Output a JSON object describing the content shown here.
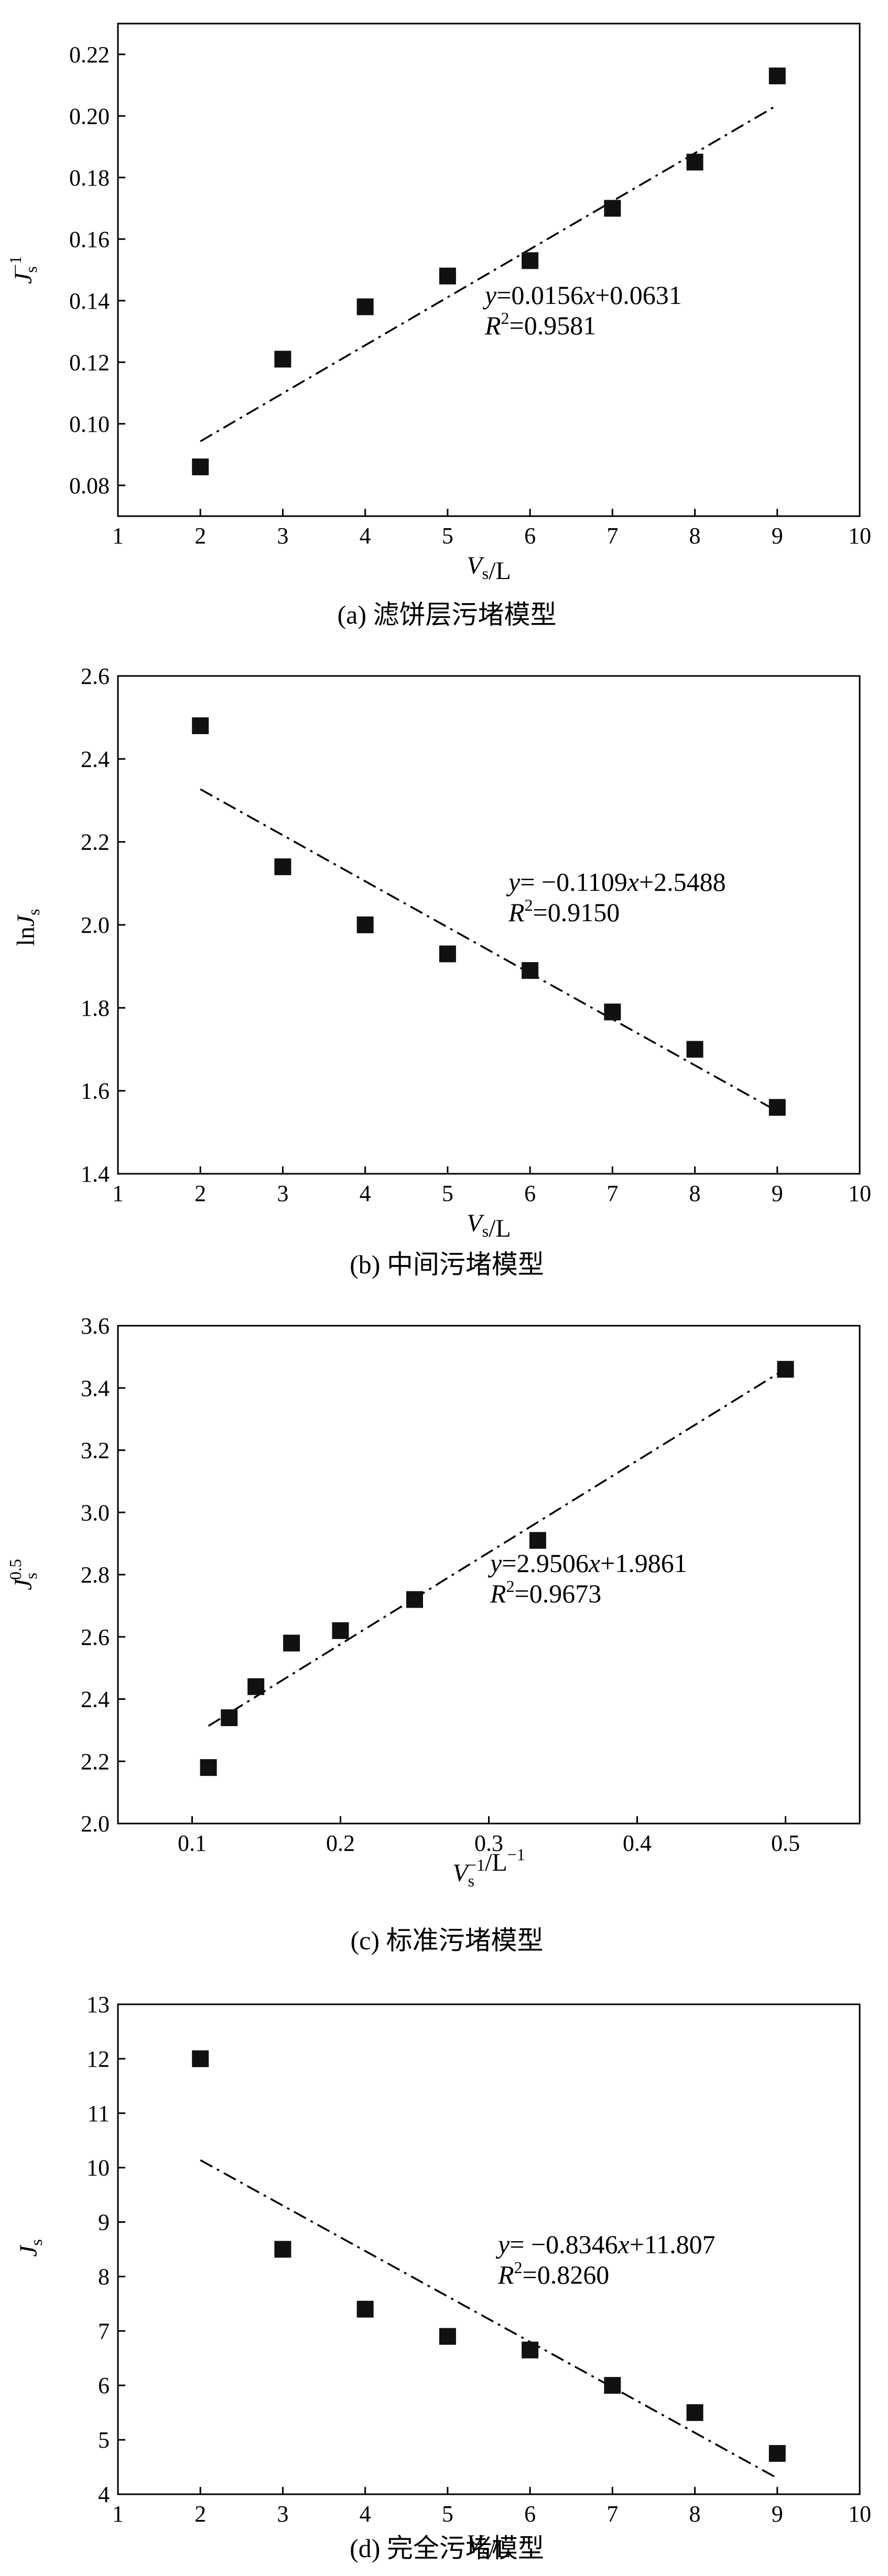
{
  "chart_data": [
    {
      "type": "scatter",
      "caption": "(a) 滤饼层污堵模型",
      "xlabel": "V_s/L",
      "ylabel": "J_s^-1",
      "xlim": [
        1,
        10
      ],
      "ylim": [
        0.07,
        0.23
      ],
      "xticks": [
        1,
        2,
        3,
        4,
        5,
        6,
        7,
        8,
        9,
        10
      ],
      "yticks": [
        0.08,
        0.1,
        0.12,
        0.14,
        0.16,
        0.18,
        0.2,
        0.22
      ],
      "ytick_decimals": 2,
      "x": [
        2,
        3,
        4,
        5,
        6,
        7,
        8,
        9
      ],
      "y": [
        0.086,
        0.121,
        0.138,
        0.148,
        0.153,
        0.17,
        0.185,
        0.213
      ],
      "fit": {
        "slope": 0.0156,
        "intercept": 0.0631,
        "x_range": [
          2,
          9
        ]
      },
      "equation": "y=0.0156x+0.0631",
      "r2": "R²=0.9581",
      "grid": false
    },
    {
      "type": "scatter",
      "caption": "(b) 中间污堵模型",
      "xlabel": "V_s/L",
      "ylabel": "lnJ_s",
      "xlim": [
        1,
        10
      ],
      "ylim": [
        1.4,
        2.6
      ],
      "xticks": [
        1,
        2,
        3,
        4,
        5,
        6,
        7,
        8,
        9,
        10
      ],
      "yticks": [
        1.4,
        1.6,
        1.8,
        2.0,
        2.2,
        2.4,
        2.6
      ],
      "ytick_decimals": 1,
      "x": [
        2,
        3,
        4,
        5,
        6,
        7,
        8,
        9
      ],
      "y": [
        2.48,
        2.14,
        2.0,
        1.93,
        1.89,
        1.79,
        1.7,
        1.56
      ],
      "fit": {
        "slope": -0.1109,
        "intercept": 2.5488,
        "x_range": [
          2,
          9
        ]
      },
      "equation": "y= −0.1109x+2.5488",
      "r2": "R²=0.9150",
      "grid": false
    },
    {
      "type": "scatter",
      "caption": "(c) 标准污堵模型",
      "xlabel": "V_s^-1/L^-1",
      "ylabel": "J_s^0.5",
      "xlim": [
        0.05,
        0.55
      ],
      "ylim": [
        2.0,
        3.6
      ],
      "xticks": [
        0.1,
        0.2,
        0.3,
        0.4,
        0.5
      ],
      "yticks": [
        2.0,
        2.2,
        2.4,
        2.6,
        2.8,
        3.0,
        3.2,
        3.4,
        3.6
      ],
      "ytick_decimals": 1,
      "x": [
        0.111,
        0.125,
        0.143,
        0.167,
        0.2,
        0.25,
        0.333,
        0.5
      ],
      "y": [
        2.18,
        2.34,
        2.44,
        2.58,
        2.62,
        2.72,
        2.91,
        3.46
      ],
      "fit": {
        "slope": 2.9506,
        "intercept": 1.9861,
        "x_range": [
          0.111,
          0.5
        ]
      },
      "equation": "y=2.9506x+1.9861",
      "r2": "R²=0.9673",
      "grid": false
    },
    {
      "type": "scatter",
      "caption": "(d) 完全污堵模型",
      "xlabel": "V_s/L",
      "ylabel": "J_s",
      "xlim": [
        1,
        10
      ],
      "ylim": [
        4,
        13
      ],
      "xticks": [
        1,
        2,
        3,
        4,
        5,
        6,
        7,
        8,
        9,
        10
      ],
      "yticks": [
        4,
        5,
        6,
        7,
        8,
        9,
        10,
        11,
        12,
        13
      ],
      "ytick_decimals": 0,
      "x": [
        2,
        3,
        4,
        5,
        6,
        7,
        8,
        9
      ],
      "y": [
        12.0,
        8.5,
        7.4,
        6.9,
        6.65,
        6.0,
        5.5,
        4.75
      ],
      "fit": {
        "slope": -0.8346,
        "intercept": 11.807,
        "x_range": [
          2,
          9
        ]
      },
      "equation": "y= −0.8346x+11.807",
      "r2": "R²=0.8260",
      "grid": false
    }
  ]
}
